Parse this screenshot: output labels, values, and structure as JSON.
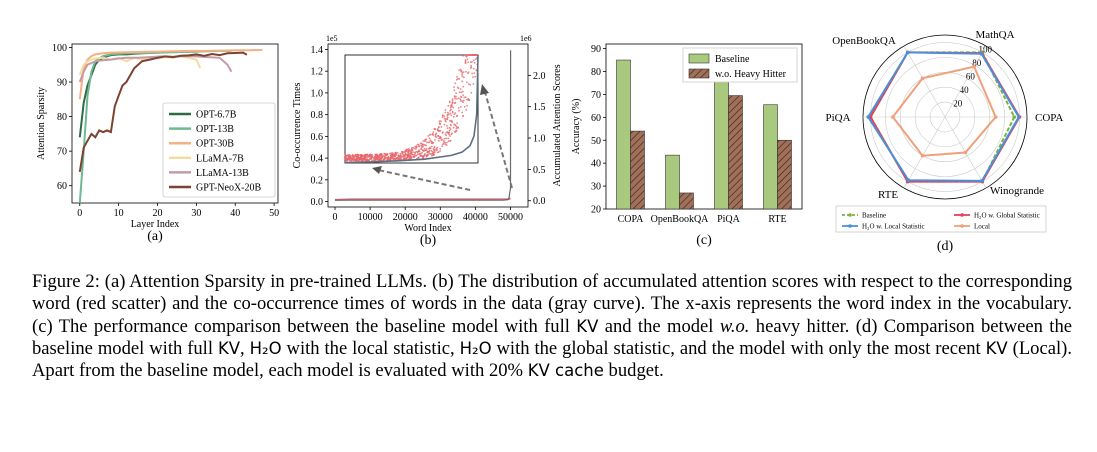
{
  "figure": {
    "panels": {
      "a": {
        "label": "(a)"
      },
      "b": {
        "label": "(b)"
      },
      "c": {
        "label": "(c)"
      },
      "d": {
        "label": "(d)"
      }
    }
  },
  "chart_data": [
    {
      "type": "line",
      "panel": "a",
      "xlabel": "Layer Index",
      "ylabel": "Attention Sparsity",
      "xlim": [
        -2,
        51
      ],
      "ylim": [
        55,
        101
      ],
      "xticks": [
        "0",
        "10",
        "20",
        "30",
        "40",
        "50"
      ],
      "yticks": [
        "60",
        "70",
        "80",
        "90",
        "100"
      ],
      "legend_position": "center-right",
      "series": [
        {
          "name": "OPT-6.7B",
          "color": "#2e6b44",
          "x": [
            0,
            1,
            2,
            3,
            4,
            5,
            6,
            7,
            8,
            10,
            12,
            14,
            16,
            18,
            20,
            22,
            24,
            26,
            28,
            30,
            31
          ],
          "y": [
            74,
            84,
            89,
            92,
            95,
            96.5,
            97,
            97.5,
            97.8,
            98,
            98,
            98.2,
            98.3,
            98.4,
            98.5,
            98.6,
            98.7,
            98.7,
            98.8,
            98.8,
            98.9
          ]
        },
        {
          "name": "OPT-13B",
          "color": "#6fb891",
          "x": [
            0,
            1,
            2,
            3,
            4,
            6,
            8,
            10,
            12,
            15,
            18,
            21,
            24,
            27,
            30,
            33,
            36,
            39
          ],
          "y": [
            55,
            70,
            86,
            93,
            96,
            97.5,
            98,
            98.2,
            98.3,
            98.4,
            98.4,
            98.5,
            98.6,
            98.7,
            98.8,
            98.9,
            99,
            99
          ]
        },
        {
          "name": "OPT-30B",
          "color": "#f4b183",
          "x": [
            0,
            1,
            2,
            3,
            4,
            6,
            8,
            12,
            16,
            20,
            24,
            28,
            32,
            36,
            40,
            44,
            47
          ],
          "y": [
            85,
            94,
            96.5,
            97.5,
            98,
            98.3,
            98.5,
            98.6,
            98.7,
            98.8,
            98.9,
            99,
            99,
            99.1,
            99.2,
            99.2,
            99.3
          ]
        },
        {
          "name": "LLaMA-7B",
          "color": "#f2dca0",
          "x": [
            0,
            1,
            2,
            3,
            4,
            6,
            8,
            10,
            12,
            14,
            16,
            18,
            20,
            22,
            24,
            26,
            28,
            30,
            31
          ],
          "y": [
            92,
            95,
            96,
            96.5,
            96.8,
            97,
            96.5,
            97,
            96,
            97,
            96.5,
            97,
            96.8,
            97.2,
            97,
            97.5,
            97,
            96.5,
            94
          ]
        },
        {
          "name": "LLaMA-13B",
          "color": "#c49aa6",
          "x": [
            0,
            1,
            2,
            3,
            4,
            6,
            8,
            10,
            12,
            15,
            18,
            21,
            24,
            27,
            30,
            33,
            36,
            38,
            39
          ],
          "y": [
            90,
            93,
            95,
            95.5,
            96,
            96.3,
            96.5,
            96.8,
            97,
            97,
            97.2,
            97.4,
            97.3,
            97.5,
            97.4,
            97.2,
            97,
            95,
            93
          ]
        },
        {
          "name": "GPT-NeoX-20B",
          "color": "#7b4333",
          "x": [
            0,
            1,
            2,
            3,
            4,
            5,
            6,
            7,
            8,
            9,
            10,
            11,
            12,
            13,
            14,
            15,
            16,
            18,
            20,
            22,
            24,
            26,
            28,
            30,
            32,
            34,
            36,
            38,
            40,
            42,
            43
          ],
          "y": [
            64,
            71,
            73,
            75,
            74,
            76,
            75.5,
            76,
            75.5,
            83,
            86,
            89,
            90,
            92,
            94,
            95,
            96,
            96.5,
            97,
            97.4,
            97.2,
            97.6,
            97.7,
            98,
            97.6,
            98.1,
            97.8,
            98.3,
            98.4,
            98.5,
            97.9
          ]
        }
      ]
    },
    {
      "type": "scatter",
      "panel": "b",
      "xlabel": "Word Index",
      "ylabel": "Co-occurrence Times",
      "ylabel2": "Accumulated Attention Scores",
      "x_scale_note": "1e6",
      "y_scale_note": "1e5",
      "xlim": [
        -2000,
        55000
      ],
      "ylim": [
        -0.05,
        1.45
      ],
      "y2lim": [
        -0.1,
        2.5
      ],
      "xticks": [
        "0",
        "10000",
        "20000",
        "30000",
        "40000",
        "50000"
      ],
      "yticks": [
        "0.0",
        "0.2",
        "0.4",
        "0.6",
        "0.8",
        "1.0",
        "1.2",
        "1.4"
      ],
      "y2ticks": [
        "0.0",
        "0.5",
        "1.0",
        "1.5",
        "2.0"
      ],
      "series": [
        {
          "name": "",
          "color": "#e8676a",
          "kind": "scatter",
          "points": [
            [
              0,
              0.015
            ],
            [
              5000,
              0.02
            ],
            [
              10000,
              0.02
            ],
            [
              15000,
              0.02
            ],
            [
              20000,
              0.02
            ],
            [
              25000,
              0.02
            ],
            [
              30000,
              0.02
            ],
            [
              35000,
              0.02
            ],
            [
              40000,
              0.02
            ],
            [
              45000,
              0.02
            ],
            [
              49000,
              0.02
            ],
            [
              50000,
              0.03
            ]
          ]
        },
        {
          "name": "",
          "color": "#6a6a6a",
          "kind": "line",
          "x": [
            0,
            10000,
            20000,
            30000,
            40000,
            48000,
            49500,
            50000,
            50050
          ],
          "y": [
            0.01,
            0.01,
            0.01,
            0.01,
            0.01,
            0.01,
            0.02,
            0.2,
            2.4
          ]
        }
      ],
      "inset": {
        "xlim": [
          0,
          50000
        ],
        "ylim": [
          0,
          1
        ],
        "curve_x": [
          0,
          10000,
          20000,
          30000,
          40000,
          44000,
          47000,
          48500,
          49500,
          50000
        ],
        "curve_y": [
          0.005,
          0.01,
          0.02,
          0.035,
          0.07,
          0.1,
          0.16,
          0.25,
          0.45,
          1.0
        ],
        "scatter_color": "#e8676a",
        "curve_color": "#5b7083"
      }
    },
    {
      "type": "bar",
      "panel": "c",
      "ylabel": "Accuracy (%)",
      "categories": [
        "COPA",
        "OpenBookQA",
        "PiQA",
        "RTE"
      ],
      "ylim": [
        20,
        92
      ],
      "yticks": [
        "20",
        "30",
        "40",
        "50",
        "60",
        "70",
        "80",
        "90"
      ],
      "legend_position": "top-right",
      "series": [
        {
          "name": "Baseline",
          "color": "#a9c97e",
          "values": [
            85,
            43.5,
            79,
            65.5
          ]
        },
        {
          "name": "w.o. Heavy Hitter",
          "color": "#a0705a",
          "hatch": true,
          "values": [
            54,
            27,
            69.5,
            50
          ]
        }
      ]
    },
    {
      "type": "radar",
      "panel": "d",
      "axes": [
        "MathQA",
        "COPA",
        "Winogrande",
        "RTE",
        "PiQA",
        "OpenBookQA"
      ],
      "rlim": [
        0,
        110
      ],
      "rticks": [
        "20",
        "40",
        "60",
        "80",
        "100"
      ],
      "legend_position": "bottom",
      "series": [
        {
          "name": "Baseline",
          "color": "#7bb33f",
          "dashed": true,
          "values": [
            100,
            93,
            100,
            100,
            100,
            100
          ]
        },
        {
          "name": "H₂O w. Global Statistic",
          "color": "#e6415a",
          "values": [
            99,
            100,
            100,
            100,
            100,
            100
          ]
        },
        {
          "name": "H₂O w. Local Statistic",
          "color": "#4a90d9",
          "values": [
            98,
            99,
            99,
            98,
            103,
            100
          ]
        },
        {
          "name": "Local",
          "color": "#f0a07a",
          "values": [
            78,
            68,
            55,
            60,
            70,
            60
          ]
        }
      ]
    }
  ],
  "caption": {
    "figure_label": "Figure 2:",
    "a": " (a) Attention Sparsity in pre-trained LLMs. (b) The distribution of accumulated attention scores with respect to the corresponding word (red scatter) and the co-occurrence times of words in the data (gray curve). The x-axis represents the word index in the vocabulary. (c) The performance comparison between the baseline model with full ",
    "kv1": "KV",
    "b": " and the model ",
    "wo": "w.o.",
    "c": " heavy hitter. (d) Comparison between the baseline model with full ",
    "kv2": "KV",
    "d": ", ",
    "h2o1": "H₂O",
    "e": " with the local statistic, ",
    "h2o2": "H₂O",
    "f": " with the global statistic, and the model with only the most recent ",
    "kv3": "KV",
    "g": " (Local). Apart from the baseline model, each model is evaluated with 20% ",
    "kv4": "KV cache",
    "h": " budget."
  }
}
